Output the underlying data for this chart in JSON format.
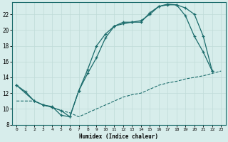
{
  "xlabel": "Humidex (Indice chaleur)",
  "bg_color": "#d7edeb",
  "line_color": "#1a6b6b",
  "grid_color": "#c0dbd8",
  "xlim": [
    -0.5,
    23.5
  ],
  "ylim": [
    8,
    23.5
  ],
  "xticks": [
    0,
    1,
    2,
    3,
    4,
    5,
    6,
    7,
    8,
    9,
    10,
    11,
    12,
    13,
    14,
    15,
    16,
    17,
    18,
    19,
    20,
    21,
    22,
    23
  ],
  "yticks": [
    8,
    10,
    12,
    14,
    16,
    18,
    20,
    22
  ],
  "line1_x": [
    0,
    1,
    2,
    3,
    4,
    5,
    6,
    7,
    8,
    9,
    10,
    11,
    12,
    13,
    14,
    15,
    16,
    17,
    18,
    19,
    20,
    21,
    22
  ],
  "line1_y": [
    13,
    12.2,
    11.0,
    10.5,
    10.3,
    9.2,
    9.0,
    12.3,
    14.5,
    16.5,
    19.0,
    20.5,
    20.8,
    21.0,
    21.0,
    22.2,
    23.0,
    23.2,
    23.2,
    21.8,
    19.2,
    17.2,
    14.8
  ],
  "line2_x": [
    0,
    2,
    3,
    4,
    5,
    6,
    7,
    8,
    9,
    10,
    11,
    12,
    13,
    14,
    15,
    16,
    17,
    18,
    19,
    20,
    21,
    22
  ],
  "line2_y": [
    13,
    11.0,
    10.5,
    10.2,
    9.8,
    9.0,
    12.3,
    15.0,
    18.0,
    19.5,
    20.5,
    21.0,
    21.0,
    21.2,
    22.0,
    23.0,
    23.3,
    23.2,
    22.8,
    22.0,
    19.2,
    14.8
  ],
  "line3_x": [
    0,
    1,
    2,
    3,
    4,
    5,
    6,
    7,
    8,
    9,
    10,
    11,
    12,
    13,
    14,
    15,
    16,
    17,
    18,
    19,
    20,
    21,
    22,
    23
  ],
  "line3_y": [
    11.0,
    11.0,
    11.0,
    10.5,
    10.2,
    9.8,
    9.5,
    9.0,
    9.5,
    10.0,
    10.5,
    11.0,
    11.5,
    11.8,
    12.0,
    12.5,
    13.0,
    13.3,
    13.5,
    13.8,
    14.0,
    14.2,
    14.5,
    14.8
  ]
}
